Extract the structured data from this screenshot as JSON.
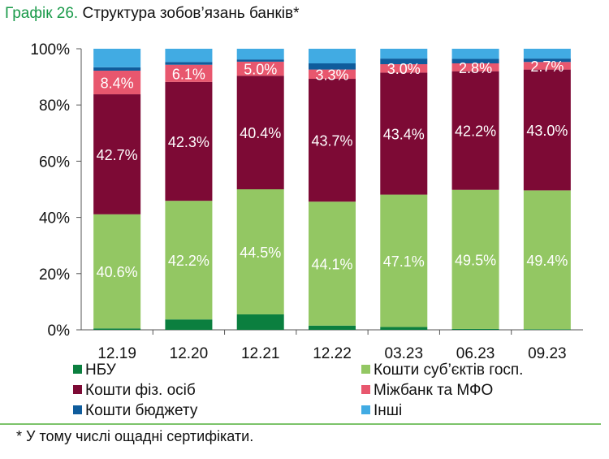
{
  "title_number": "Графік 26.",
  "title_text": "Структура зобов’язань банків*",
  "footnote": "* У тому числі ощадні сертифікати.",
  "chart_data": {
    "type": "bar",
    "stacked": true,
    "categories": [
      "12.19",
      "12.20",
      "12.21",
      "12.22",
      "03.23",
      "06.23",
      "09.23"
    ],
    "ylim": [
      0,
      100
    ],
    "yticks": [
      "0%",
      "20%",
      "40%",
      "60%",
      "80%",
      "100%"
    ],
    "grid": false,
    "legend_position": "bottom",
    "series": [
      {
        "name": "НБУ",
        "color": "#0b7f3f",
        "values": [
          0.5,
          3.7,
          5.5,
          1.5,
          1.0,
          0.3,
          0.2
        ]
      },
      {
        "name": "Кошти суб’єктів госп.",
        "color": "#93c763",
        "values": [
          40.6,
          42.2,
          44.5,
          44.1,
          47.1,
          49.5,
          49.4
        ],
        "labels": [
          "40.6%",
          "42.2%",
          "44.5%",
          "44.1%",
          "47.1%",
          "49.5%",
          "49.4%"
        ]
      },
      {
        "name": "Кошти фіз. осіб",
        "color": "#7d0a35",
        "values": [
          42.7,
          42.3,
          40.4,
          43.7,
          43.4,
          42.2,
          43.0
        ],
        "labels": [
          "42.7%",
          "42.3%",
          "40.4%",
          "43.7%",
          "43.4%",
          "42.2%",
          "43.0%"
        ]
      },
      {
        "name": "Міжбанк та МФО",
        "color": "#e8576e",
        "values": [
          8.4,
          6.1,
          5.0,
          3.3,
          3.0,
          2.8,
          2.7
        ],
        "labels": [
          "8.4%",
          "6.1%",
          "5.0%",
          "3.3%",
          "3.0%",
          "2.8%",
          "2.7%"
        ]
      },
      {
        "name": "Кошти бюджету",
        "color": "#0f5c9c",
        "values": [
          1.2,
          1.0,
          0.8,
          2.2,
          2.0,
          1.6,
          1.2
        ]
      },
      {
        "name": "Інші",
        "color": "#41abe3",
        "values": [
          6.6,
          4.7,
          3.8,
          5.2,
          3.5,
          3.6,
          3.5
        ]
      }
    ]
  }
}
